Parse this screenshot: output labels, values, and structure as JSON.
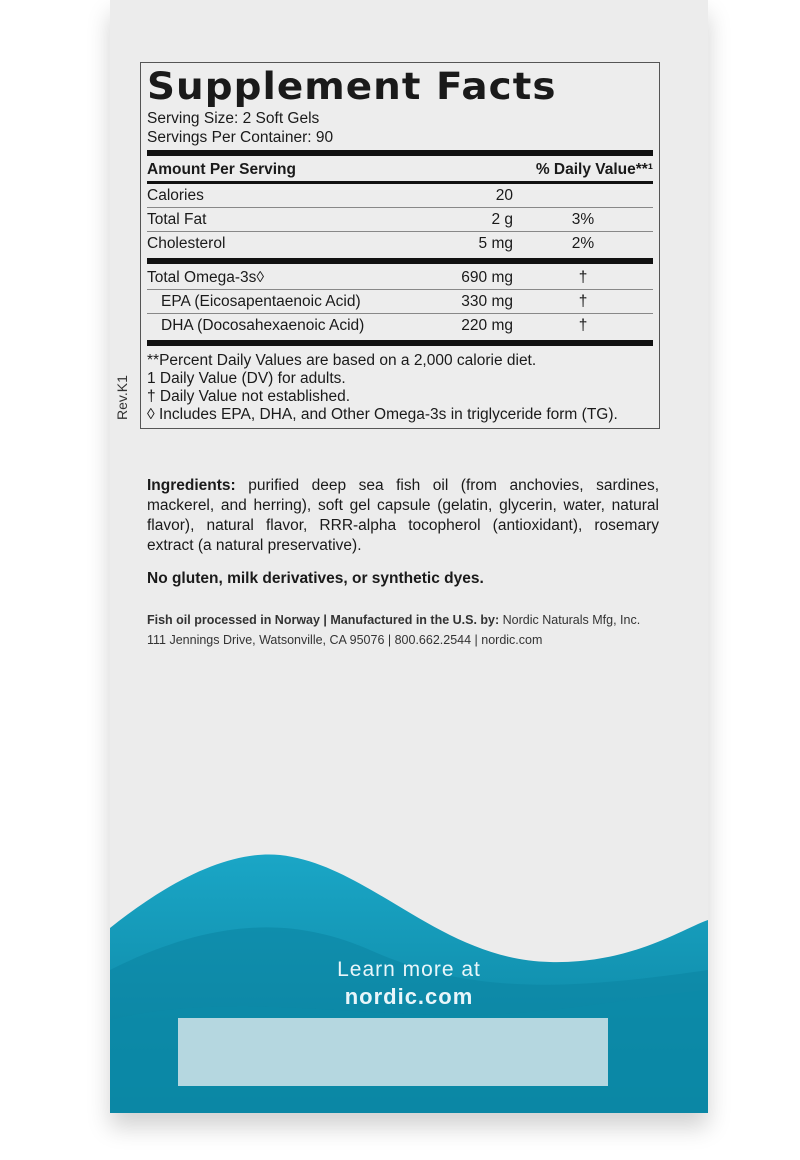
{
  "facts": {
    "title": "Supplement Facts",
    "serving_size": "Serving Size: 2 Soft Gels",
    "servings_per_container": "Servings Per Container: 90",
    "header_amount": "Amount Per Serving",
    "header_dv": "% Daily Value**¹",
    "rows": [
      {
        "name": "Calories",
        "amount": "20",
        "dv": ""
      },
      {
        "name": "Total Fat",
        "amount": "2 g",
        "dv": "3%"
      },
      {
        "name": "Cholesterol",
        "amount": "5 mg",
        "dv": "2%"
      }
    ],
    "omega_rows": [
      {
        "name": "Total Omega-3s◊",
        "amount": "690 mg",
        "dv": "†"
      },
      {
        "name": "EPA (Eicosapentaenoic Acid)",
        "amount": "330 mg",
        "dv": "†"
      },
      {
        "name": "DHA (Docosahexaenoic Acid)",
        "amount": "220 mg",
        "dv": "†"
      }
    ],
    "notes": [
      "**Percent Daily Values are based on a 2,000 calorie diet.",
      "1 Daily Value (DV) for adults.",
      "† Daily Value not established.",
      "◊ Includes EPA, DHA, and Other Omega-3s in triglyceride form (TG)."
    ],
    "rev": "Rev.K1"
  },
  "ingredients": {
    "label": "Ingredients:",
    "text": " purified deep sea fish oil (from anchovies, sardines, mackerel, and herring), soft gel capsule (gelatin, glycerin, water, natural flavor), natural flavor, RRR-alpha tocopherol (antioxidant), rosemary extract (a natural preservative)."
  },
  "free_from": "No gluten, milk derivatives, or synthetic dyes.",
  "manufacturer": {
    "bold": "Fish oil processed in Norway | Manufactured in the U.S. by:",
    "name": " Nordic Naturals Mfg, Inc.",
    "address": "111 Jennings Drive, Watsonville, CA 95076 | 800.662.2544 | nordic.com"
  },
  "promo": {
    "line1": "Learn more at",
    "line2": "nordic.com"
  },
  "colors": {
    "wave_light": "#1aa3c4",
    "wave_dark": "#0a7f9c",
    "panel": "#b5d7e0"
  }
}
